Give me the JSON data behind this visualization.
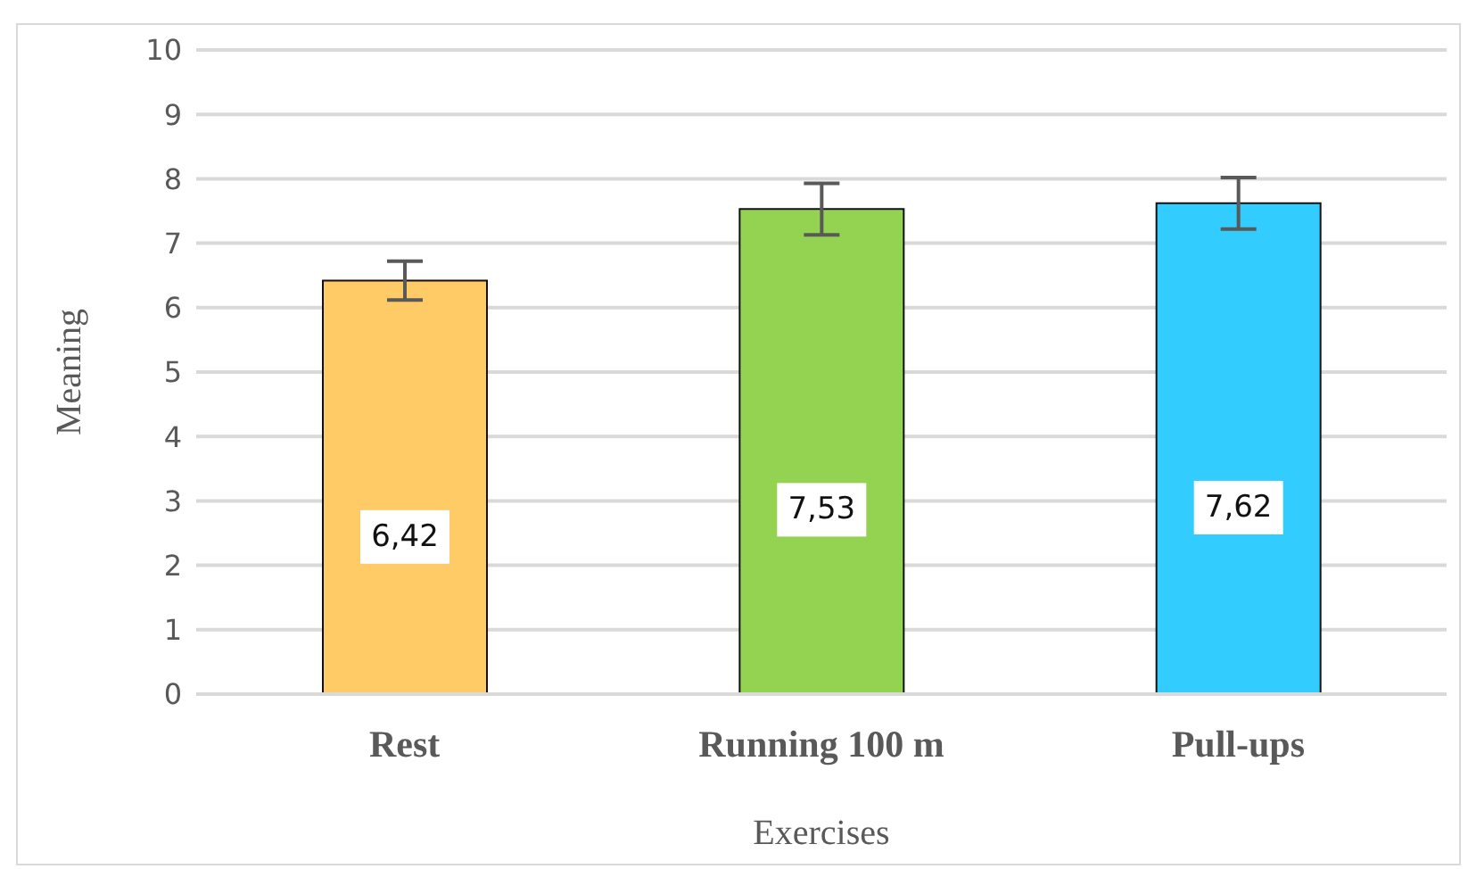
{
  "chart_data": {
    "type": "bar",
    "xlabel": "Exercises",
    "ylabel": "Meaning",
    "categories": [
      "Rest",
      "Running 100 m",
      "Pull-ups"
    ],
    "values": [
      6.42,
      7.53,
      7.62
    ],
    "colors": [
      "#fecb66",
      "#94d251",
      "#33ccff"
    ],
    "errors": [
      0.3,
      0.4,
      0.4
    ],
    "value_labels": [
      "6,42",
      "7,53",
      "7,62"
    ],
    "ylim": [
      0,
      10
    ],
    "yticks": [
      0,
      1,
      2,
      3,
      4,
      5,
      6,
      7,
      8,
      9,
      10
    ],
    "grid": "y",
    "legend": false
  }
}
